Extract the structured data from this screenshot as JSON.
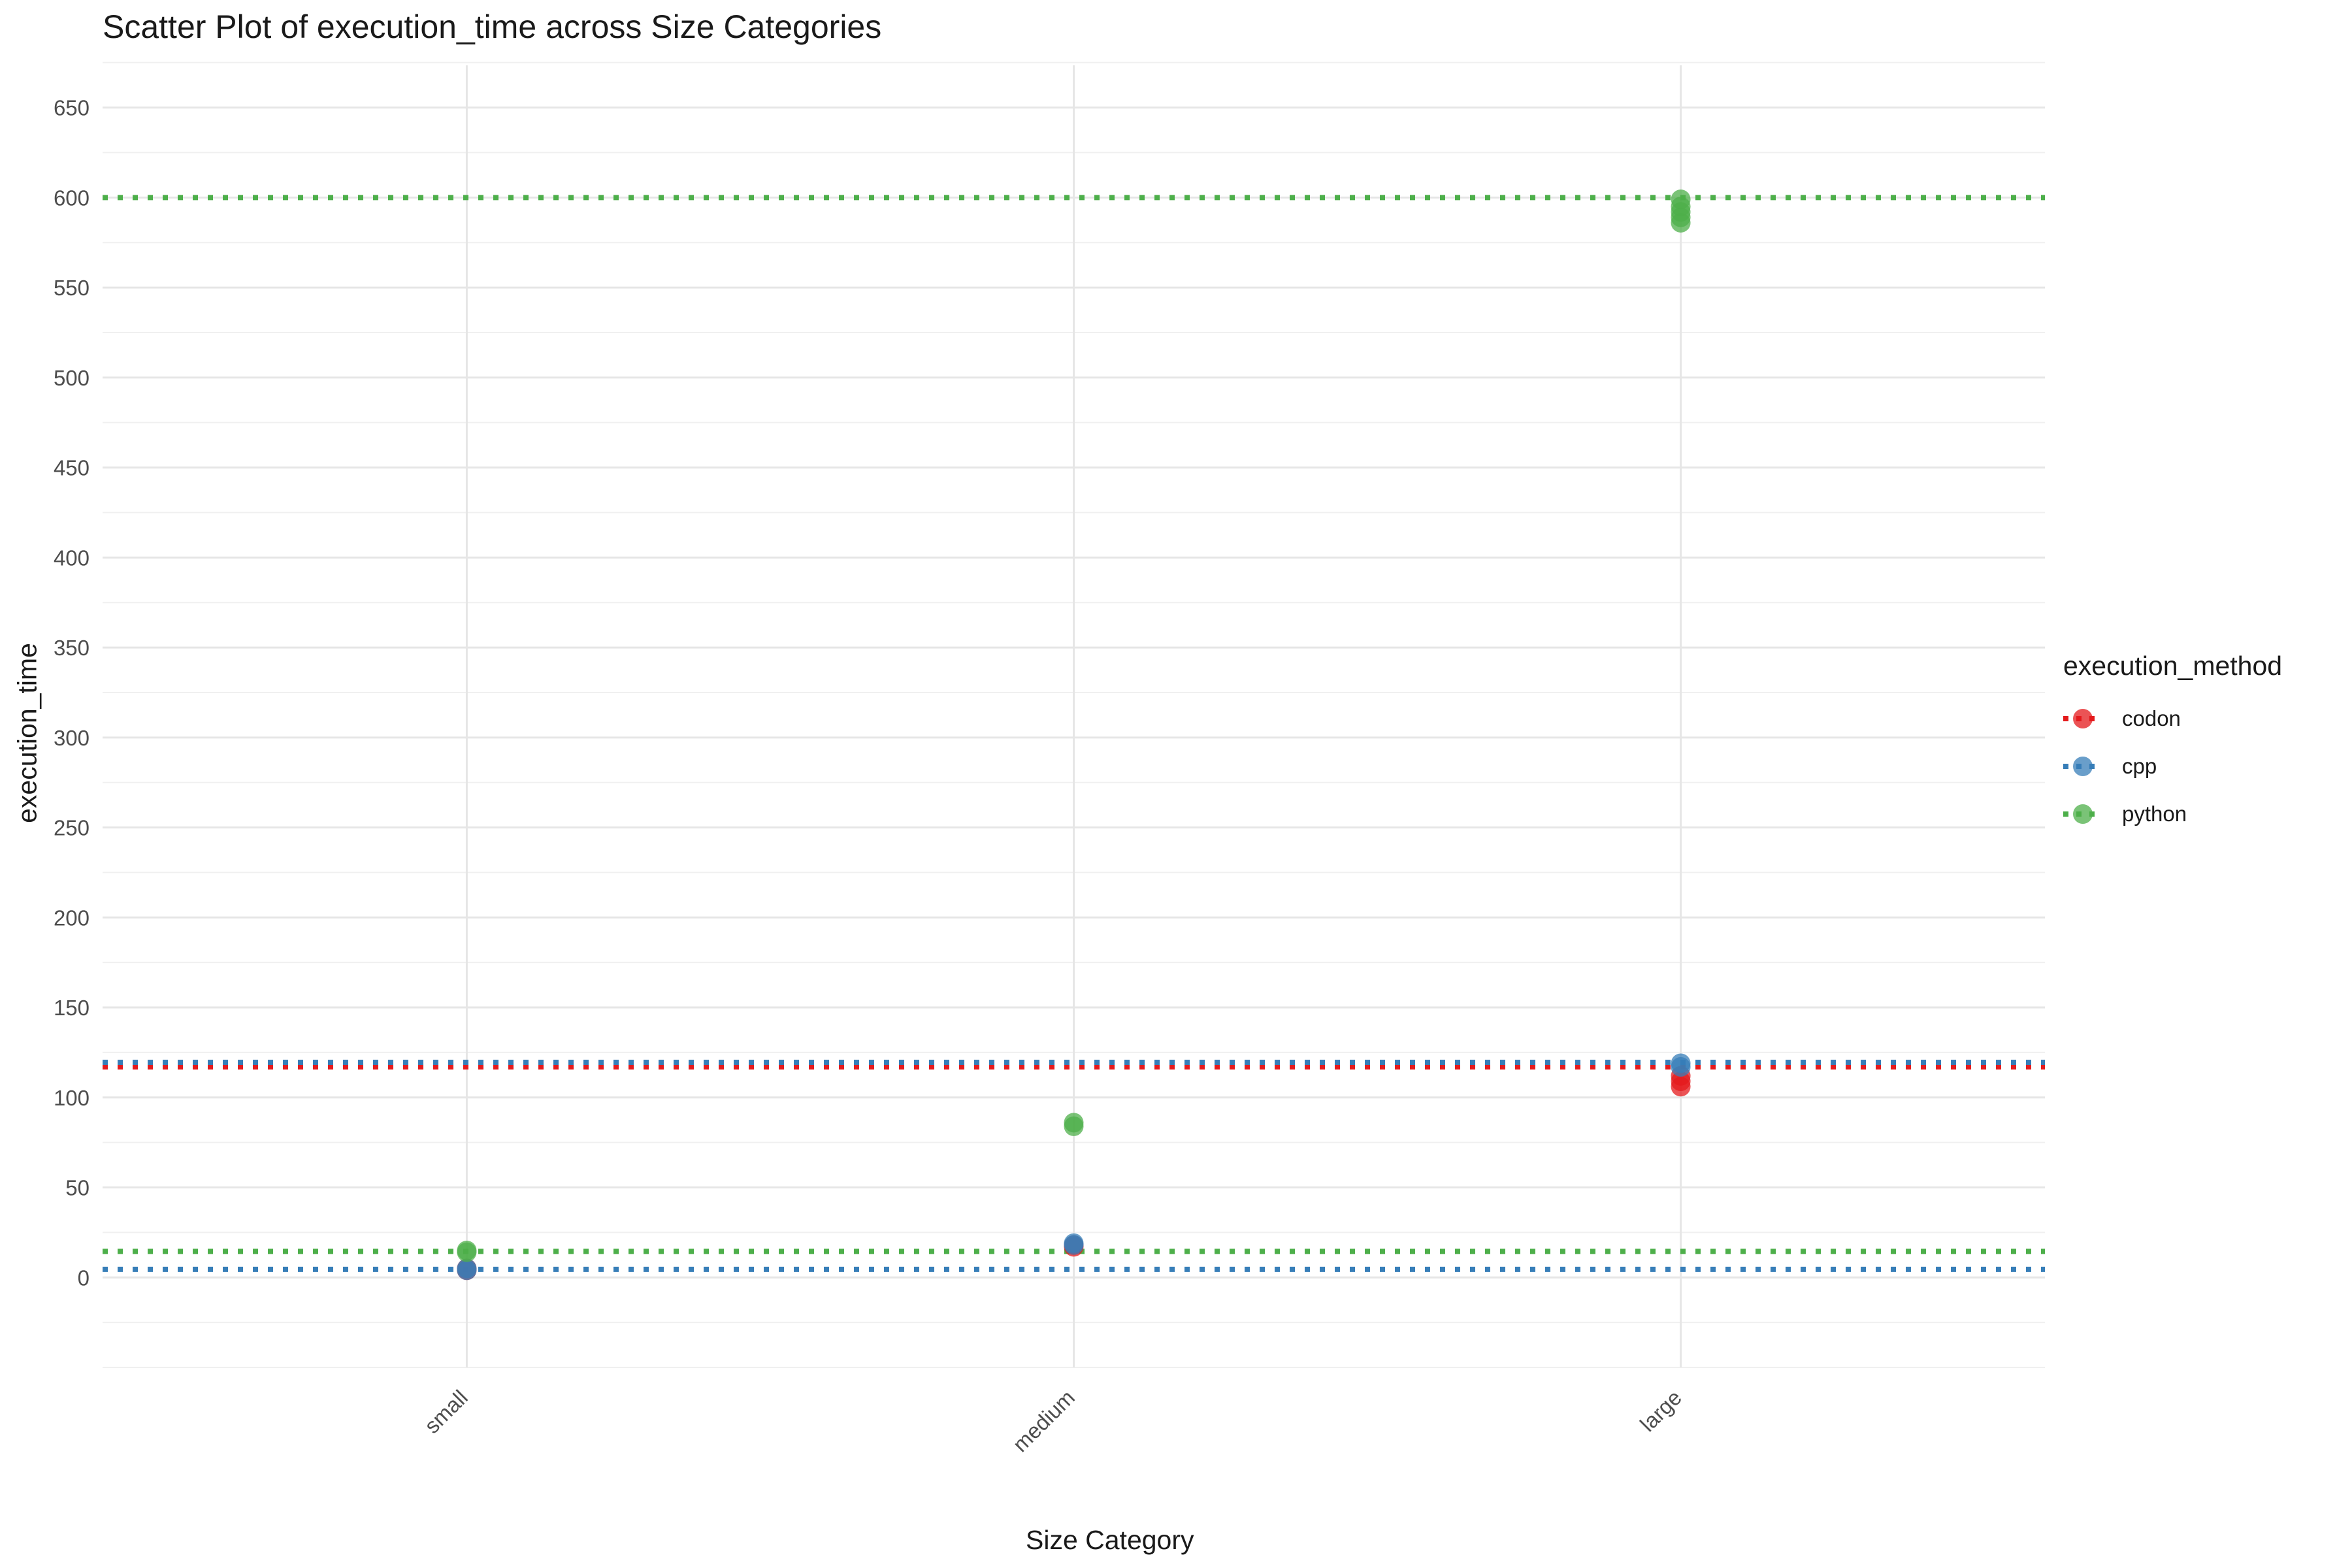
{
  "chart_data": {
    "type": "scatter",
    "title": "Scatter Plot of execution_time across Size Categories",
    "xlabel": "Size Category",
    "ylabel": "execution_time",
    "categories": [
      "small",
      "medium",
      "large"
    ],
    "ylim": [
      -50,
      680
    ],
    "yticks": [
      0,
      50,
      100,
      150,
      200,
      250,
      300,
      350,
      400,
      450,
      500,
      550,
      600,
      650
    ],
    "yticks_labels": [
      "0",
      "50",
      "100",
      "150",
      "200",
      "250",
      "300",
      "350",
      "400",
      "450",
      "500",
      "550",
      "600",
      "650"
    ],
    "grid": true,
    "legend_title": "execution_method",
    "legend_position": "right",
    "series": [
      {
        "name": "codon",
        "color": "#E41A1C",
        "points": [
          {
            "x": "small",
            "y": 4
          },
          {
            "x": "small",
            "y": 5
          },
          {
            "x": "medium",
            "y": 17
          },
          {
            "x": "medium",
            "y": 18
          },
          {
            "x": "large",
            "y": 106
          },
          {
            "x": "large",
            "y": 109
          },
          {
            "x": "large",
            "y": 112
          }
        ],
        "hlines": [
          117
        ]
      },
      {
        "name": "cpp",
        "color": "#377EB8",
        "points": [
          {
            "x": "small",
            "y": 4
          },
          {
            "x": "small",
            "y": 5
          },
          {
            "x": "medium",
            "y": 18
          },
          {
            "x": "medium",
            "y": 19
          },
          {
            "x": "large",
            "y": 117
          },
          {
            "x": "large",
            "y": 119
          }
        ],
        "hlines": [
          4.5,
          119.5
        ]
      },
      {
        "name": "python",
        "color": "#4DAF4A",
        "points": [
          {
            "x": "small",
            "y": 14
          },
          {
            "x": "small",
            "y": 15
          },
          {
            "x": "medium",
            "y": 84
          },
          {
            "x": "medium",
            "y": 86
          },
          {
            "x": "large",
            "y": 586
          },
          {
            "x": "large",
            "y": 589
          },
          {
            "x": "large",
            "y": 592
          },
          {
            "x": "large",
            "y": 595
          },
          {
            "x": "large",
            "y": 599
          }
        ],
        "hlines": [
          14.5,
          600
        ]
      }
    ]
  }
}
